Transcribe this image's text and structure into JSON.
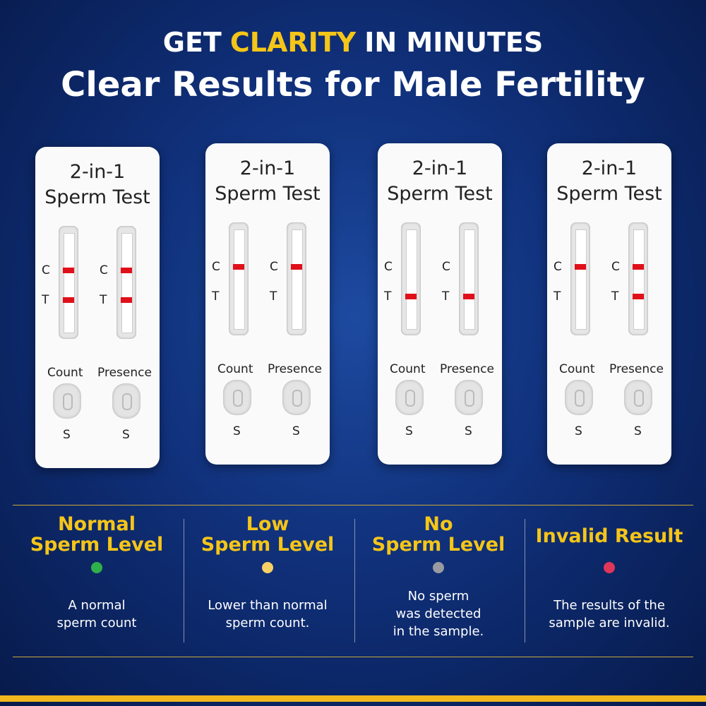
{
  "header": {
    "title": [
      "GET",
      "CLARITY",
      "IN MINUTES"
    ],
    "subtitle": "Clear Results for Male Fertility"
  },
  "cards": [
    {
      "title": "2-in-1",
      "subtitle": "Sperm Test",
      "strips": [
        {
          "label": "Count",
          "c": "C",
          "t": "T",
          "well": "S",
          "c_line": true,
          "t_line": true
        },
        {
          "label": "Presence",
          "c": "C",
          "t": "T",
          "well": "S",
          "c_line": true,
          "t_line": true
        }
      ]
    },
    {
      "title": "2-in-1",
      "subtitle": "Sperm Test",
      "strips": [
        {
          "label": "Count",
          "c": "C",
          "t": "T",
          "well": "S",
          "c_line": true,
          "t_line": false
        },
        {
          "label": "Presence",
          "c": "C",
          "t": "T",
          "well": "S",
          "c_line": true,
          "t_line": false
        }
      ]
    },
    {
      "title": "2-in-1",
      "subtitle": "Sperm Test",
      "strips": [
        {
          "label": "Count",
          "c": "C",
          "t": "T",
          "well": "S",
          "c_line": false,
          "t_line": true
        },
        {
          "label": "Presence",
          "c": "C",
          "t": "T",
          "well": "S",
          "c_line": false,
          "t_line": true
        }
      ]
    },
    {
      "title": "2-in-1",
      "subtitle": "Sperm Test",
      "strips": [
        {
          "label": "Count",
          "c": "C",
          "t": "T",
          "well": "S",
          "c_line": true,
          "t_line": false
        },
        {
          "label": "Presence",
          "c": "C",
          "t": "T",
          "well": "S",
          "c_line": true,
          "t_line": true
        }
      ]
    }
  ],
  "results": [
    {
      "title": [
        "Normal",
        "Sperm Level"
      ],
      "color": "#2fb04a",
      "description": [
        "A normal",
        "sperm count"
      ]
    },
    {
      "title": [
        "Low",
        "Sperm Level"
      ],
      "color": "#f7d066",
      "description": [
        "Lower than normal",
        "sperm count."
      ]
    },
    {
      "title": [
        "No",
        "Sperm Level"
      ],
      "color": "#9a9aa2",
      "description": [
        "No sperm",
        "was detected",
        "in the sample."
      ]
    },
    {
      "title": [
        "Invalid Result"
      ],
      "color": "#e0365a",
      "description": [
        "The results of the",
        "sample are invalid."
      ]
    }
  ]
}
